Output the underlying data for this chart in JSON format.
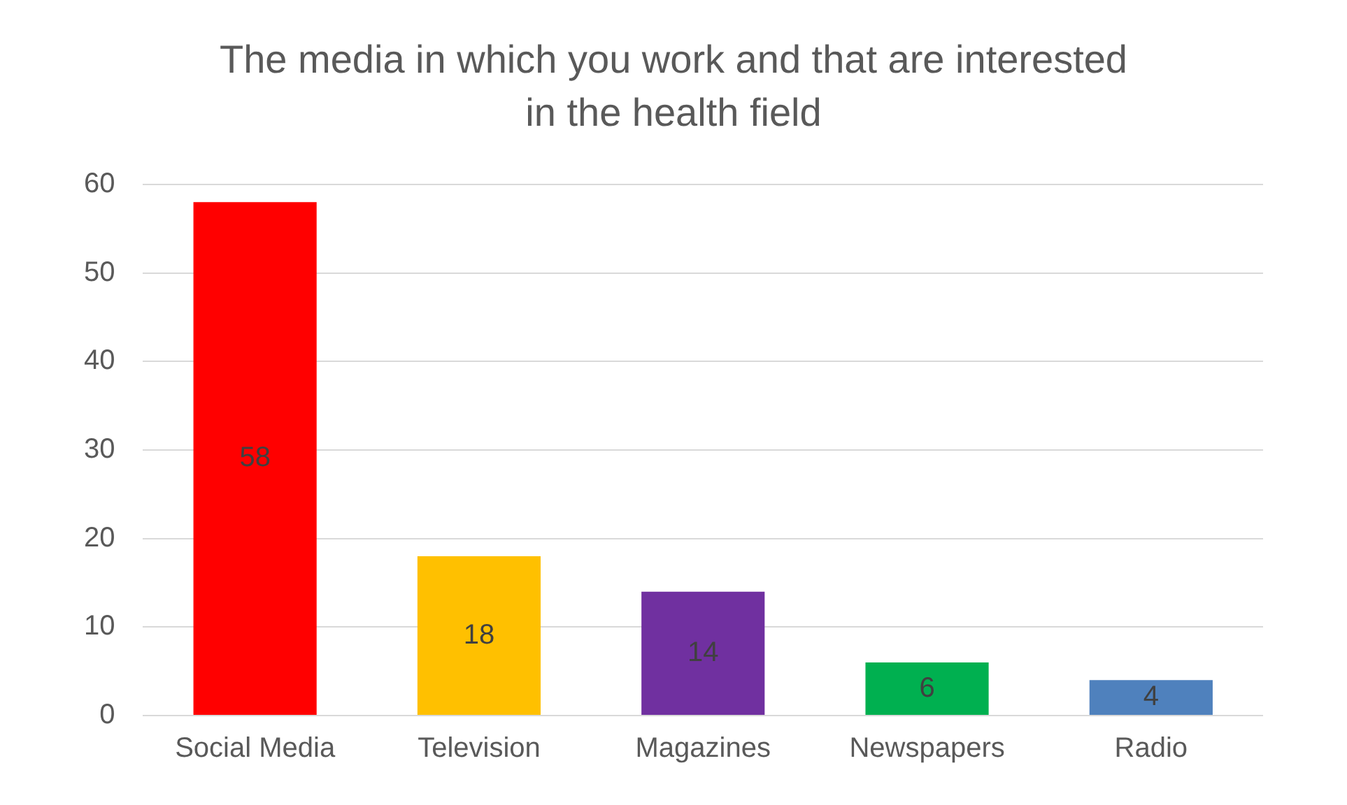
{
  "chart_data": {
    "type": "bar",
    "title": "The media in which you work and that are interested in the health field",
    "categories": [
      "Social Media",
      "Television",
      "Magazines",
      "Newspapers",
      "Radio"
    ],
    "values": [
      58,
      18,
      14,
      6,
      4
    ],
    "colors": [
      "#ff0000",
      "#ffc000",
      "#7030a0",
      "#00b050",
      "#4f81bd"
    ],
    "ylim": [
      0,
      60
    ],
    "yticks": [
      0,
      10,
      20,
      30,
      40,
      50,
      60
    ],
    "grid": "y",
    "legend": false,
    "data_labels": true
  }
}
